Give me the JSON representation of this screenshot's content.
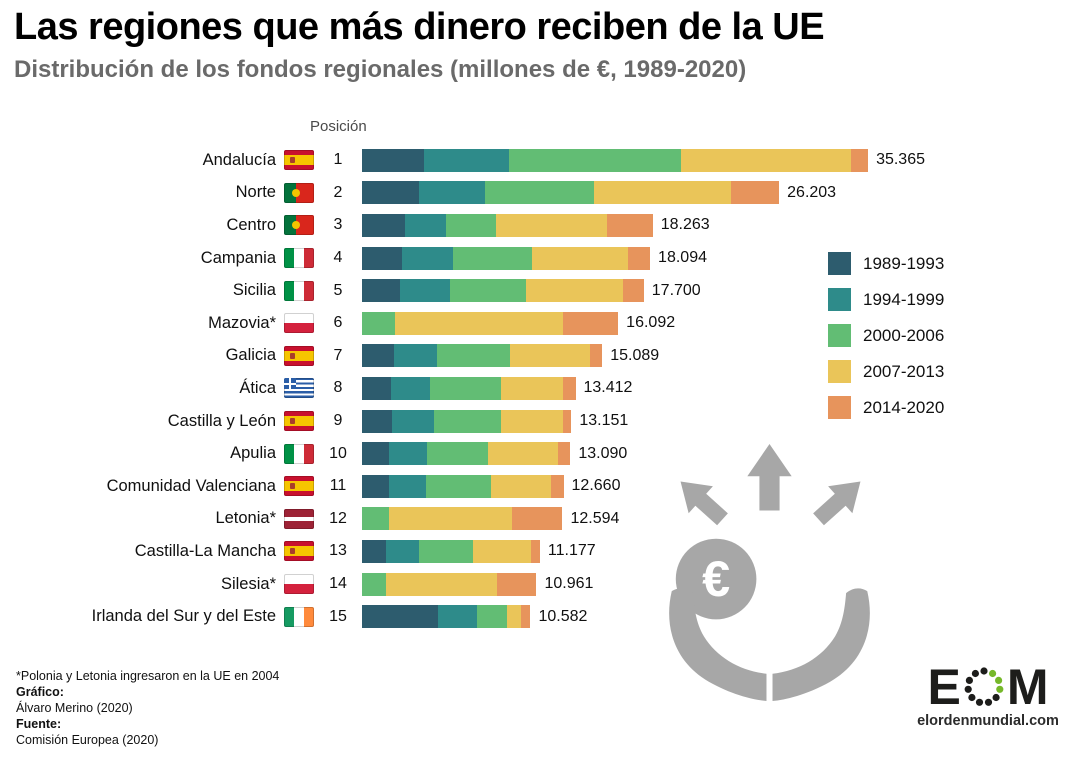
{
  "title": "Las regiones que más dinero reciben de la UE",
  "subtitle": "Distribución de los fondos regionales (millones de €, 1989-2020)",
  "chart_data": {
    "type": "bar",
    "orientation": "horizontal",
    "stacked": true,
    "position_label": "Posición",
    "unit": "millones de €",
    "max_value": 35365,
    "legend": [
      {
        "label": "1989-1993",
        "color": "#2d5c6e"
      },
      {
        "label": "1994-1999",
        "color": "#2e8b8a"
      },
      {
        "label": "2000-2006",
        "color": "#62bd74"
      },
      {
        "label": "2007-2013",
        "color": "#eac559"
      },
      {
        "label": "2014-2020",
        "color": "#e7945c"
      }
    ],
    "rows": [
      {
        "rank": 1,
        "region": "Andalucía",
        "country": "spain",
        "total_label": "35.365",
        "values": [
          4300,
          6000,
          12000,
          11900,
          1165
        ]
      },
      {
        "rank": 2,
        "region": "Norte",
        "country": "portugal",
        "total_label": "26.203",
        "values": [
          3600,
          4100,
          6900,
          8600,
          3003
        ]
      },
      {
        "rank": 3,
        "region": "Centro",
        "country": "portugal",
        "total_label": "18.263",
        "values": [
          2700,
          2600,
          3100,
          7000,
          2863
        ]
      },
      {
        "rank": 4,
        "region": "Campania",
        "country": "italy",
        "total_label": "18.094",
        "values": [
          2500,
          3200,
          5000,
          6000,
          1394
        ]
      },
      {
        "rank": 5,
        "region": "Sicilia",
        "country": "italy",
        "total_label": "17.700",
        "values": [
          2400,
          3100,
          4800,
          6100,
          1300
        ]
      },
      {
        "rank": 6,
        "region": "Mazovia*",
        "country": "poland",
        "total_label": "16.092",
        "values": [
          0,
          0,
          2100,
          10500,
          3492
        ]
      },
      {
        "rank": 7,
        "region": "Galicia",
        "country": "spain",
        "total_label": "15.089",
        "values": [
          2000,
          2700,
          4600,
          5000,
          789
        ]
      },
      {
        "rank": 8,
        "region": "Ática",
        "country": "greece",
        "total_label": "13.412",
        "values": [
          1800,
          2500,
          4400,
          3900,
          812
        ]
      },
      {
        "rank": 9,
        "region": "Castilla y León",
        "country": "spain",
        "total_label": "13.151",
        "values": [
          1900,
          2600,
          4200,
          3900,
          551
        ]
      },
      {
        "rank": 10,
        "region": "Apulia",
        "country": "italy",
        "total_label": "13.090",
        "values": [
          1700,
          2400,
          3800,
          4400,
          790
        ]
      },
      {
        "rank": 11,
        "region": "Comunidad Valenciana",
        "country": "spain",
        "total_label": "12.660",
        "values": [
          1700,
          2300,
          4100,
          3800,
          760
        ]
      },
      {
        "rank": 12,
        "region": "Letonia*",
        "country": "latvia",
        "total_label": "12.594",
        "values": [
          0,
          0,
          1700,
          7700,
          3194
        ]
      },
      {
        "rank": 13,
        "region": "Castilla-La Mancha",
        "country": "spain",
        "total_label": "11.177",
        "values": [
          1500,
          2100,
          3400,
          3600,
          577
        ]
      },
      {
        "rank": 14,
        "region": "Silesia*",
        "country": "poland",
        "total_label": "10.961",
        "values": [
          0,
          0,
          1500,
          7000,
          2461
        ]
      },
      {
        "rank": 15,
        "region": "Irlanda del Sur y del Este",
        "country": "ireland",
        "total_label": "10.582",
        "values": [
          4800,
          2400,
          1900,
          900,
          582
        ]
      }
    ]
  },
  "footnotes": {
    "asterisk_note": "*Polonia y Letonia ingresaron en la UE en 2004",
    "credit1_label": "Gráfico:",
    "credit1_value": "Álvaro Merino (2020)",
    "credit2_label": "Fuente:",
    "credit2_value": "Comisión Europea (2020)"
  },
  "decoration": {
    "name": "euro-coin-in-hands-with-arrows",
    "color": "#a7a7a7",
    "coin_symbol": "€"
  },
  "logo": {
    "letter_e": "E",
    "letter_m": "M",
    "site": "elordenmundial.com",
    "accent_color": "#76b82a"
  }
}
